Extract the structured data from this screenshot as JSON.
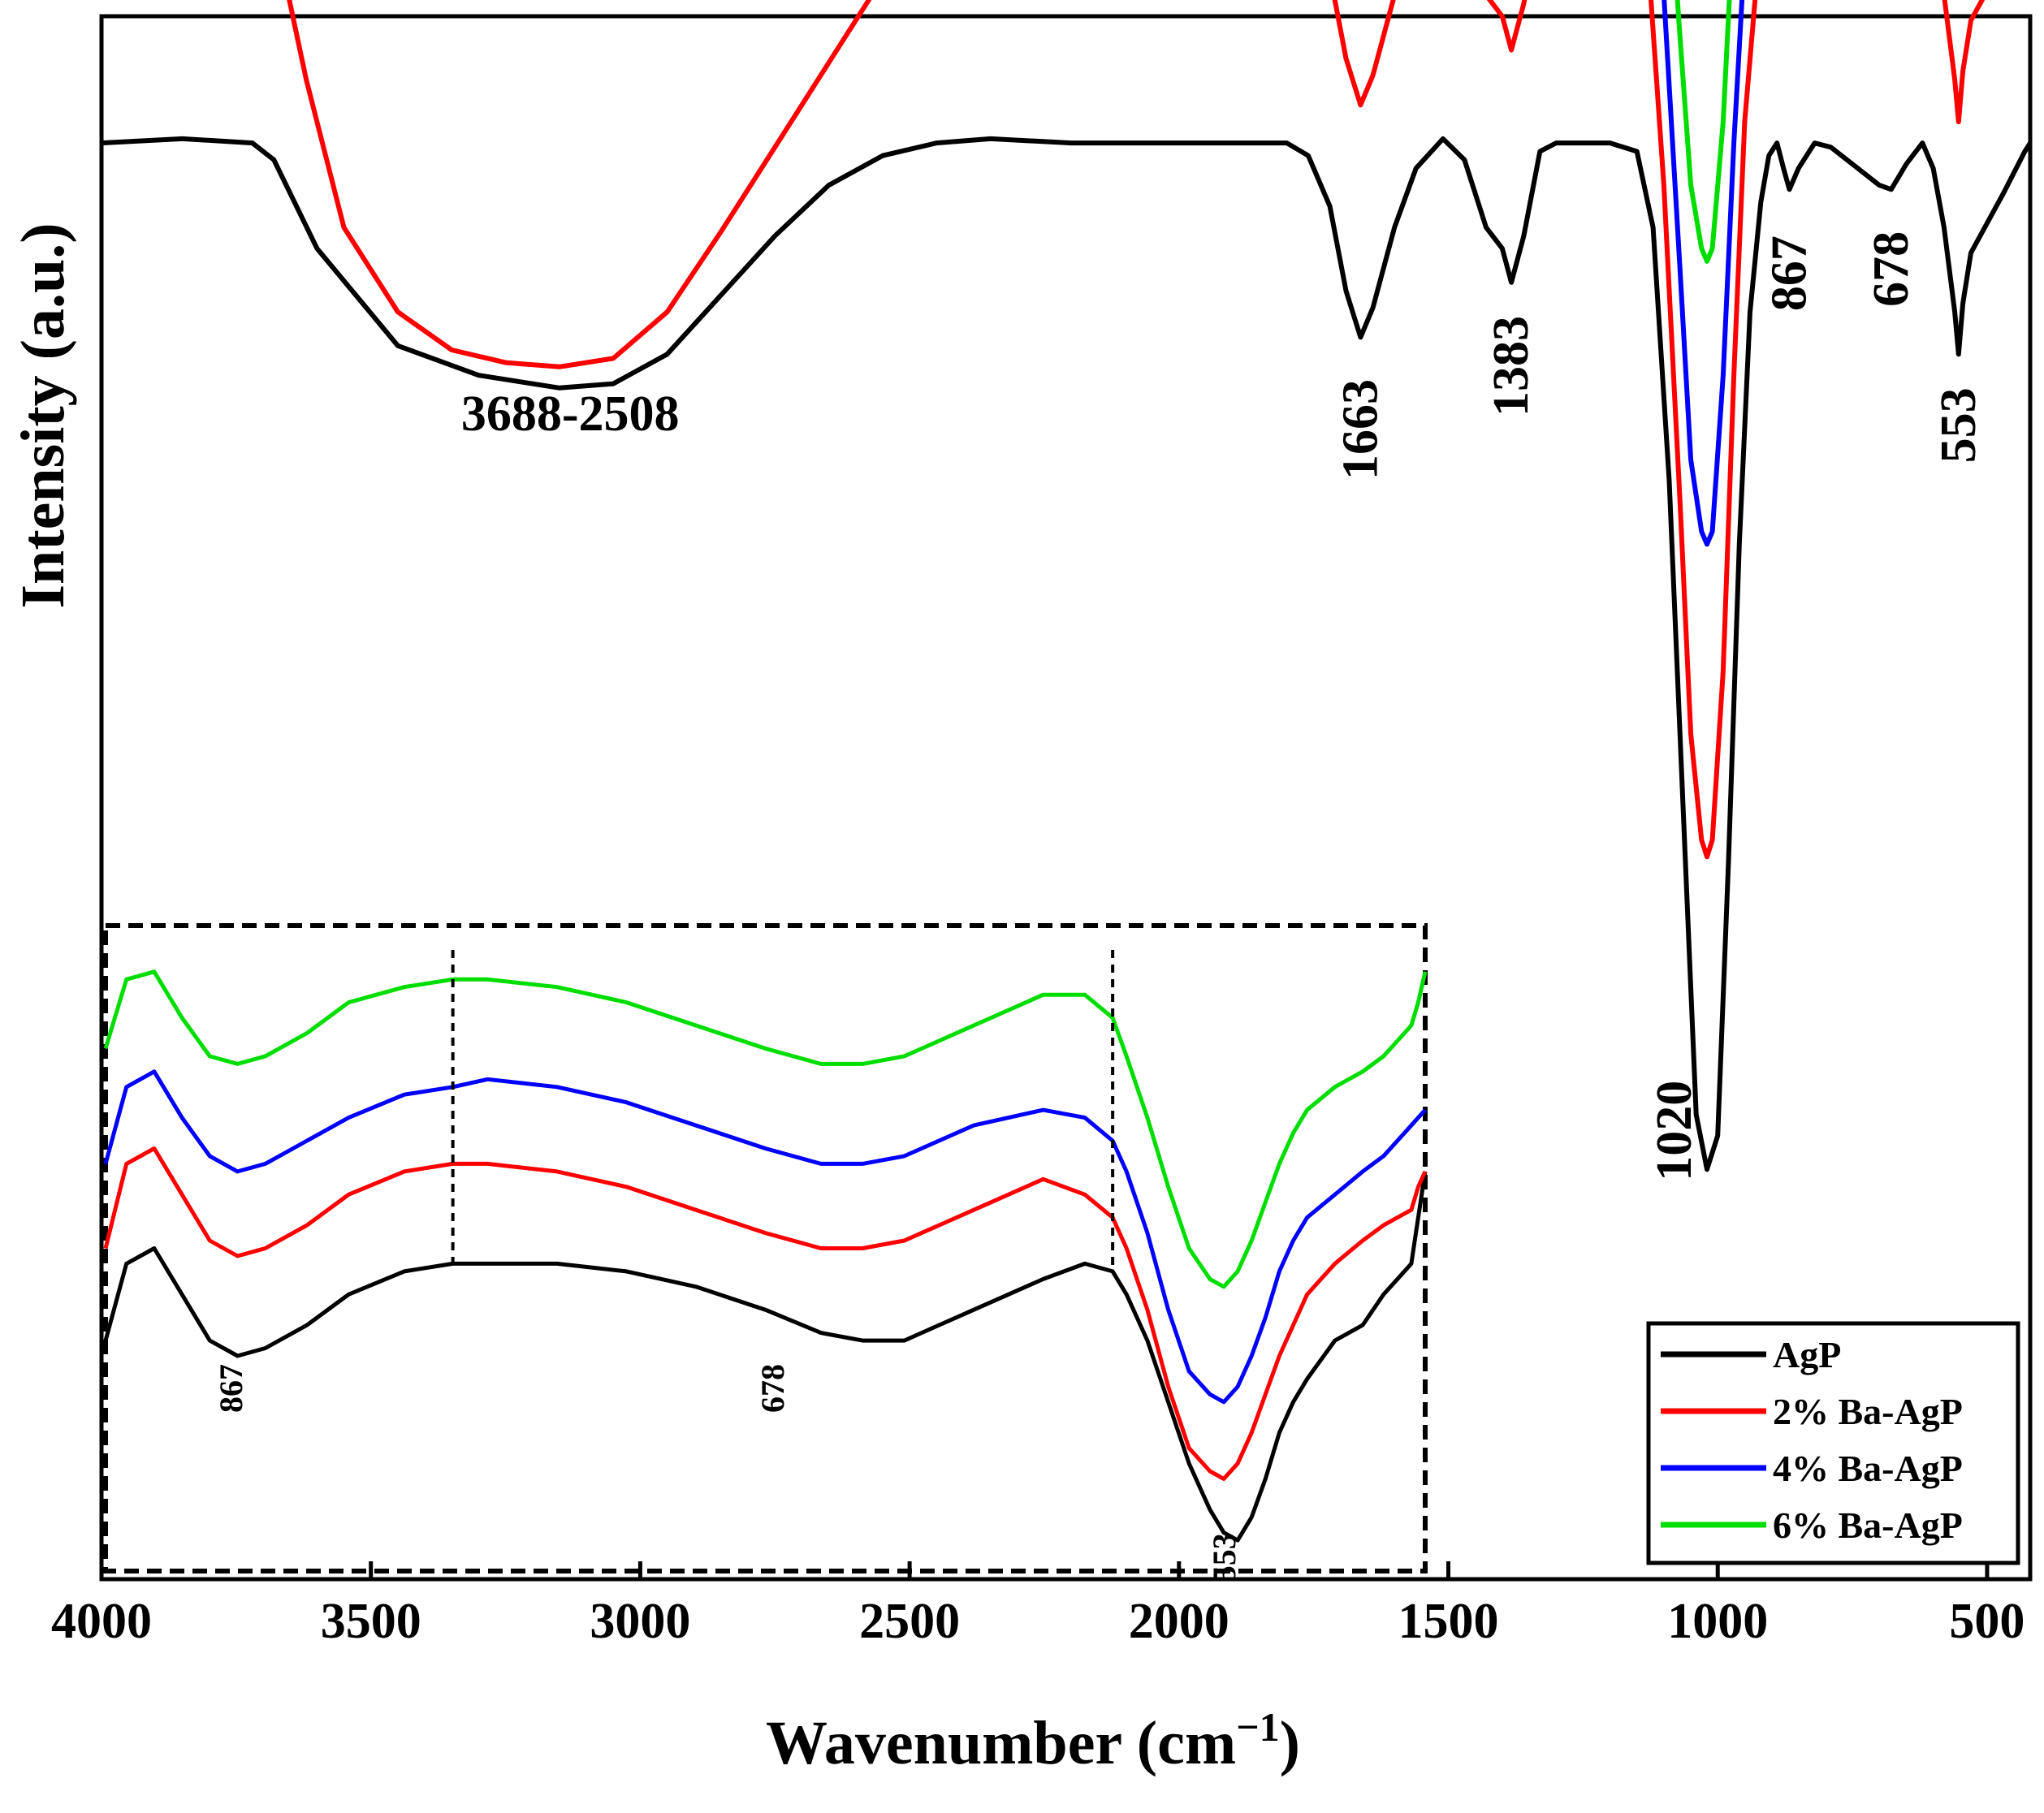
{
  "chart_data": {
    "type": "line",
    "title": "",
    "xlabel": "Wavenumber (cm",
    "xlabel_sup": "−1",
    "xlabel_close": ")",
    "ylabel": "Intensity (a.u.)",
    "xlim": [
      4000,
      420
    ],
    "x_ticks": [
      "4000",
      "3500",
      "3000",
      "2500",
      "2000",
      "1500",
      "1000",
      "500"
    ],
    "x_tick_values": [
      4000,
      3500,
      3000,
      2500,
      2000,
      1500,
      1000,
      500
    ],
    "ylim": [
      -34,
      3
    ],
    "y_ticks_shown": false,
    "series": [
      {
        "name": "AgP",
        "color": "#000000",
        "offset": 0,
        "x": [
          4000,
          3850,
          3720,
          3680,
          3600,
          3450,
          3300,
          3150,
          3050,
          2950,
          2850,
          2750,
          2650,
          2550,
          2450,
          2350,
          2200,
          2000,
          1800,
          1760,
          1720,
          1690,
          1663,
          1640,
          1600,
          1560,
          1510,
          1470,
          1430,
          1400,
          1383,
          1360,
          1330,
          1300,
          1240,
          1200,
          1150,
          1120,
          1090,
          1060,
          1040,
          1020,
          1000,
          980,
          960,
          940,
          920,
          905,
          890,
          878,
          867,
          850,
          820,
          790,
          760,
          720,
          700,
          678,
          650,
          620,
          600,
          580,
          560,
          553,
          545,
          530,
          500,
          470,
          450,
          430,
          420
        ],
        "y": [
          0.0,
          0.1,
          0.0,
          -0.4,
          -2.5,
          -4.8,
          -5.5,
          -5.8,
          -5.7,
          -5.0,
          -3.6,
          -2.2,
          -1.0,
          -0.3,
          0.0,
          0.1,
          0.0,
          0.0,
          0.0,
          -0.3,
          -1.5,
          -3.5,
          -4.6,
          -3.9,
          -2.0,
          -0.6,
          0.1,
          -0.4,
          -2.0,
          -2.5,
          -3.3,
          -2.2,
          -0.2,
          0.0,
          0.0,
          0.0,
          -0.2,
          -2.0,
          -8.0,
          -17.0,
          -23.0,
          -24.3,
          -23.5,
          -17.0,
          -9.5,
          -4.0,
          -1.4,
          -0.3,
          0.0,
          -0.6,
          -1.1,
          -0.6,
          0.0,
          -0.1,
          -0.4,
          -0.8,
          -1.0,
          -1.1,
          -0.5,
          0.0,
          -0.6,
          -2.0,
          -4.0,
          -5.0,
          -3.8,
          -2.6,
          -1.9,
          -1.2,
          -0.7,
          -0.2,
          0.0
        ]
      },
      {
        "name": "2% Ba-AgP",
        "color": "#ff0000",
        "offset": 5.5,
        "x": [
          4000,
          3850,
          3720,
          3680,
          3620,
          3550,
          3450,
          3350,
          3250,
          3150,
          3050,
          2950,
          2850,
          2750,
          2650,
          2550,
          2500,
          2450,
          2300,
          2100,
          1900,
          1800,
          1760,
          1720,
          1690,
          1663,
          1640,
          1600,
          1560,
          1510,
          1470,
          1430,
          1400,
          1383,
          1360,
          1330,
          1300,
          1240,
          1200,
          1160,
          1130,
          1100,
          1070,
          1050,
          1030,
          1020,
          1010,
          990,
          970,
          950,
          930,
          910,
          895,
          880,
          867,
          850,
          820,
          790,
          760,
          720,
          700,
          678,
          650,
          620,
          600,
          580,
          560,
          553,
          545,
          530,
          500,
          470,
          450,
          430,
          420
        ],
        "y": [
          0.0,
          0.1,
          0.0,
          -0.4,
          -4.0,
          -7.5,
          -9.5,
          -10.4,
          -10.7,
          -10.8,
          -10.6,
          -9.5,
          -7.6,
          -5.6,
          -3.6,
          -1.6,
          -0.5,
          -0.1,
          0.0,
          0.0,
          0.0,
          0.0,
          -0.3,
          -1.5,
          -3.5,
          -4.6,
          -3.9,
          -2.0,
          -0.6,
          0.1,
          -0.4,
          -2.0,
          -2.5,
          -3.3,
          -2.2,
          -0.2,
          0.0,
          0.0,
          0.2,
          0.3,
          -1.0,
          -6.5,
          -14.0,
          -19.5,
          -22.0,
          -22.4,
          -22.0,
          -18.0,
          -11.0,
          -5.0,
          -2.0,
          -0.5,
          0.0,
          -0.6,
          -1.1,
          -0.6,
          0.0,
          -0.1,
          -0.4,
          -0.8,
          -1.0,
          -1.1,
          -0.5,
          0.0,
          -0.6,
          -2.0,
          -4.0,
          -5.0,
          -3.8,
          -2.6,
          -1.9,
          -1.2,
          -0.7,
          -0.2,
          0.0
        ]
      },
      {
        "name": "4% Ba-AgP",
        "color": "#0000ff",
        "offset": 9.0,
        "x": [
          4000,
          3850,
          3720,
          3680,
          3620,
          3550,
          3450,
          3350,
          3250,
          3150,
          3050,
          2950,
          2850,
          2750,
          2650,
          2550,
          2500,
          2450,
          2300,
          2100,
          1900,
          1800,
          1760,
          1720,
          1690,
          1663,
          1640,
          1600,
          1560,
          1510,
          1470,
          1430,
          1400,
          1383,
          1360,
          1330,
          1300,
          1240,
          1200,
          1160,
          1130,
          1100,
          1070,
          1050,
          1030,
          1020,
          1010,
          990,
          970,
          950,
          930,
          910,
          895,
          880,
          867,
          850,
          820,
          790,
          760,
          720,
          700,
          678,
          650,
          620,
          600,
          580,
          560,
          553,
          545,
          530,
          500,
          470,
          450,
          430,
          420
        ],
        "y": [
          0.0,
          0.1,
          0.0,
          -0.4,
          -2.4,
          -3.9,
          -4.6,
          -5.0,
          -5.2,
          -5.4,
          -5.5,
          -5.1,
          -4.2,
          -3.0,
          -1.8,
          -0.8,
          -0.3,
          0.0,
          0.0,
          0.0,
          0.0,
          0.0,
          -0.3,
          -1.5,
          -3.5,
          -4.6,
          -3.9,
          -2.0,
          -0.6,
          0.1,
          -0.4,
          -2.0,
          -2.5,
          -3.3,
          -2.2,
          -0.2,
          0.0,
          0.0,
          0.2,
          0.3,
          -1.0,
          -5.5,
          -12.0,
          -16.5,
          -18.2,
          -18.5,
          -18.2,
          -14.5,
          -9.0,
          -4.5,
          -1.8,
          -0.5,
          0.0,
          -0.6,
          -1.1,
          -0.6,
          0.0,
          -0.1,
          -0.4,
          -0.8,
          -1.0,
          -1.1,
          -0.5,
          0.0,
          -0.6,
          -2.0,
          -4.0,
          -5.0,
          -3.8,
          -2.0,
          -0.8,
          0.2,
          0.8,
          1.1,
          0.0
        ]
      },
      {
        "name": "6% Ba-AgP",
        "color": "#00dd00",
        "offset": 12.0,
        "x": [
          4000,
          3850,
          3720,
          3680,
          3620,
          3550,
          3450,
          3350,
          3250,
          3150,
          3050,
          2950,
          2850,
          2750,
          2650,
          2550,
          2500,
          2450,
          2300,
          2100,
          1900,
          1800,
          1760,
          1720,
          1690,
          1663,
          1640,
          1600,
          1560,
          1510,
          1470,
          1430,
          1400,
          1383,
          1360,
          1330,
          1300,
          1240,
          1200,
          1160,
          1130,
          1100,
          1070,
          1050,
          1030,
          1020,
          1010,
          990,
          970,
          950,
          930,
          910,
          895,
          880,
          867,
          850,
          820,
          790,
          760,
          720,
          700,
          678,
          650,
          620,
          600,
          580,
          560,
          553,
          545,
          530,
          500,
          470,
          450,
          430,
          420
        ],
        "y": [
          0.0,
          0.1,
          0.0,
          -0.4,
          -2.2,
          -3.6,
          -4.3,
          -4.7,
          -4.9,
          -5.1,
          -5.2,
          -4.8,
          -3.9,
          -2.8,
          -1.6,
          -0.7,
          -0.3,
          0.0,
          0.0,
          0.0,
          0.0,
          0.0,
          -0.3,
          -1.5,
          -3.5,
          -4.6,
          -3.9,
          -2.0,
          -0.6,
          0.1,
          -0.4,
          -2.0,
          -2.5,
          -3.3,
          -2.2,
          -0.2,
          0.0,
          0.0,
          0.2,
          0.4,
          0.3,
          -4.0,
          -9.5,
          -13.0,
          -14.5,
          -14.8,
          -14.5,
          -11.5,
          -6.5,
          -3.0,
          -1.0,
          -0.2,
          0.0,
          -0.6,
          -1.0,
          -0.6,
          0.0,
          -0.1,
          -0.4,
          -0.8,
          -1.0,
          -1.1,
          -0.5,
          0.0,
          -0.6,
          -2.0,
          -4.0,
          -5.0,
          -3.8,
          -2.0,
          -0.6,
          0.6,
          1.2,
          1.5,
          0.0
        ]
      }
    ],
    "annotations": [
      {
        "text": "3688-2508",
        "x": 3130,
        "y": -6.8,
        "rotated": false
      },
      {
        "text": "1663",
        "x": 1663,
        "y": -5.4,
        "rotated": true
      },
      {
        "text": "1383",
        "x": 1383,
        "y": -3.9,
        "rotated": true
      },
      {
        "text": "1020",
        "x": 1080,
        "y": -22.0,
        "rotated": true
      },
      {
        "text": "867",
        "x": 867,
        "y": -2.0,
        "rotated": true
      },
      {
        "text": "678",
        "x": 678,
        "y": -1.9,
        "rotated": true
      },
      {
        "text": "553",
        "x": 553,
        "y": -5.6,
        "rotated": true
      }
    ],
    "legend": {
      "position": "bottom-right",
      "entries": [
        "AgP",
        "2% Ba-AgP",
        "4% Ba-AgP",
        "6% Ba-AgP"
      ]
    },
    "inset": {
      "type": "line",
      "description_position": "bottom-left",
      "x_range": [
        3850,
        1950
      ],
      "dashed_border": true,
      "dashed_markers_x": [
        3350,
        2400
      ],
      "labels": [
        {
          "text": "867",
          "x": 3670,
          "y": 0.16
        },
        {
          "text": "678",
          "x": 2890,
          "y": 0.16
        },
        {
          "text": "553",
          "x": 2240,
          "y": -0.06
        }
      ],
      "series": [
        {
          "name": "AgP",
          "color": "#000000",
          "x": [
            3850,
            3820,
            3780,
            3740,
            3700,
            3660,
            3620,
            3560,
            3500,
            3420,
            3350,
            3300,
            3200,
            3100,
            3000,
            2900,
            2820,
            2760,
            2700,
            2650,
            2600,
            2550,
            2500,
            2440,
            2400,
            2380,
            2350,
            2320,
            2290,
            2260,
            2240,
            2220,
            2200,
            2180,
            2160,
            2140,
            2120,
            2080,
            2040,
            2010,
            1990,
            1970,
            1960,
            1950
          ],
          "y": [
            0.18,
            0.28,
            0.3,
            0.24,
            0.18,
            0.16,
            0.17,
            0.2,
            0.24,
            0.27,
            0.28,
            0.28,
            0.28,
            0.27,
            0.25,
            0.22,
            0.19,
            0.18,
            0.18,
            0.2,
            0.22,
            0.24,
            0.26,
            0.28,
            0.27,
            0.24,
            0.18,
            0.1,
            0.02,
            -0.04,
            -0.07,
            -0.08,
            -0.05,
            0.0,
            0.06,
            0.1,
            0.13,
            0.18,
            0.2,
            0.24,
            0.26,
            0.28,
            0.34,
            0.4
          ]
        },
        {
          "name": "2% Ba-AgP",
          "color": "#ff0000",
          "x": [
            3850,
            3820,
            3780,
            3740,
            3700,
            3660,
            3620,
            3560,
            3500,
            3420,
            3350,
            3300,
            3200,
            3100,
            3000,
            2900,
            2820,
            2760,
            2700,
            2650,
            2600,
            2550,
            2500,
            2440,
            2400,
            2380,
            2350,
            2320,
            2290,
            2260,
            2240,
            2220,
            2200,
            2180,
            2160,
            2140,
            2120,
            2080,
            2040,
            2010,
            1990,
            1970,
            1960,
            1950
          ],
          "y": [
            0.3,
            0.41,
            0.43,
            0.37,
            0.31,
            0.29,
            0.3,
            0.33,
            0.37,
            0.4,
            0.41,
            0.41,
            0.4,
            0.38,
            0.35,
            0.32,
            0.3,
            0.3,
            0.31,
            0.33,
            0.35,
            0.37,
            0.39,
            0.37,
            0.34,
            0.3,
            0.22,
            0.12,
            0.04,
            0.01,
            0.0,
            0.02,
            0.06,
            0.11,
            0.16,
            0.2,
            0.24,
            0.28,
            0.31,
            0.33,
            0.34,
            0.35,
            0.38,
            0.4
          ]
        },
        {
          "name": "4% Ba-AgP",
          "color": "#0000ff",
          "x": [
            3850,
            3820,
            3780,
            3740,
            3700,
            3660,
            3620,
            3560,
            3500,
            3420,
            3350,
            3300,
            3200,
            3100,
            3000,
            2900,
            2820,
            2760,
            2700,
            2650,
            2600,
            2550,
            2500,
            2440,
            2400,
            2380,
            2350,
            2320,
            2290,
            2260,
            2240,
            2220,
            2200,
            2180,
            2160,
            2140,
            2120,
            2080,
            2040,
            2010,
            1990,
            1970,
            1960,
            1950
          ],
          "y": [
            0.41,
            0.51,
            0.53,
            0.47,
            0.42,
            0.4,
            0.41,
            0.44,
            0.47,
            0.5,
            0.51,
            0.52,
            0.51,
            0.49,
            0.46,
            0.43,
            0.41,
            0.41,
            0.42,
            0.44,
            0.46,
            0.47,
            0.48,
            0.47,
            0.44,
            0.4,
            0.32,
            0.22,
            0.14,
            0.11,
            0.1,
            0.12,
            0.16,
            0.21,
            0.27,
            0.31,
            0.34,
            0.37,
            0.4,
            0.42,
            0.44,
            0.46,
            0.47,
            0.48
          ]
        },
        {
          "name": "6% Ba-AgP",
          "color": "#00dd00",
          "x": [
            3850,
            3820,
            3780,
            3740,
            3700,
            3660,
            3620,
            3560,
            3500,
            3420,
            3350,
            3300,
            3200,
            3100,
            3000,
            2900,
            2820,
            2760,
            2700,
            2650,
            2600,
            2550,
            2500,
            2440,
            2400,
            2380,
            2350,
            2320,
            2290,
            2260,
            2240,
            2220,
            2200,
            2180,
            2160,
            2140,
            2120,
            2080,
            2040,
            2010,
            1990,
            1970,
            1960,
            1950
          ],
          "y": [
            0.56,
            0.65,
            0.66,
            0.6,
            0.55,
            0.54,
            0.55,
            0.58,
            0.62,
            0.64,
            0.65,
            0.65,
            0.64,
            0.62,
            0.59,
            0.56,
            0.54,
            0.54,
            0.55,
            0.57,
            0.59,
            0.61,
            0.63,
            0.63,
            0.6,
            0.55,
            0.47,
            0.38,
            0.3,
            0.26,
            0.25,
            0.27,
            0.31,
            0.36,
            0.41,
            0.45,
            0.48,
            0.51,
            0.53,
            0.55,
            0.57,
            0.59,
            0.62,
            0.66
          ]
        }
      ]
    }
  }
}
